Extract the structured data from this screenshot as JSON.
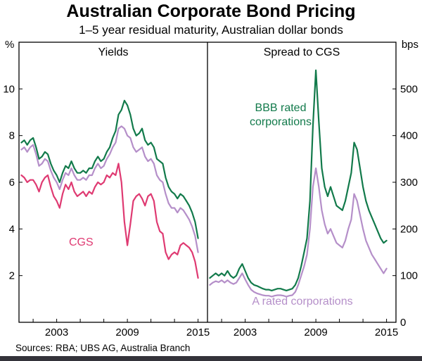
{
  "chart_data": {
    "type": "line",
    "title": "Australian Corporate Bond Pricing",
    "subtitle": "1–5 year residual maturity, Australian dollar bonds",
    "x_start": 2000.0,
    "x_step": 0.25,
    "xlim": [
      1999.8,
      2015.8
    ],
    "xticks_minor": [
      2001,
      2003,
      2005,
      2007,
      2009,
      2011,
      2013,
      2015
    ],
    "xtick_labels": [
      2003,
      2009,
      2015
    ],
    "grid": false,
    "legend_position": "inline-annotations",
    "panels": [
      {
        "title": "Yields",
        "unit": "%",
        "ylim": [
          0,
          12
        ],
        "yticks": [
          2,
          4,
          6,
          8,
          10
        ],
        "series": [
          {
            "id": "bbb-yield",
            "name": "BBB rated corporations",
            "color": "#127a4b",
            "values": [
              7.7,
              7.8,
              7.6,
              7.8,
              7.9,
              7.5,
              7.0,
              7.1,
              7.3,
              7.2,
              6.8,
              6.5,
              6.3,
              6.0,
              6.4,
              6.7,
              6.6,
              6.9,
              6.6,
              6.4,
              6.4,
              6.5,
              6.4,
              6.6,
              6.6,
              6.9,
              7.1,
              6.9,
              7.0,
              7.3,
              7.5,
              7.9,
              8.2,
              8.9,
              9.1,
              9.5,
              9.3,
              8.9,
              8.3,
              8.0,
              8.1,
              8.3,
              7.8,
              7.6,
              7.7,
              7.5,
              7.0,
              6.9,
              6.8,
              6.2,
              5.8,
              5.6,
              5.5,
              5.3,
              5.5,
              5.4,
              5.2,
              5.0,
              4.7,
              4.3,
              3.6
            ]
          },
          {
            "id": "a-yield",
            "name": "A rated corporations",
            "color": "#b58fc9",
            "values": [
              7.4,
              7.5,
              7.3,
              7.5,
              7.6,
              7.2,
              6.7,
              6.8,
              7.0,
              6.9,
              6.5,
              6.2,
              6.0,
              5.7,
              6.1,
              6.4,
              6.3,
              6.6,
              6.3,
              6.1,
              6.1,
              6.2,
              6.1,
              6.3,
              6.3,
              6.6,
              6.8,
              6.6,
              6.7,
              7.0,
              7.2,
              7.5,
              7.7,
              8.3,
              8.4,
              8.3,
              8.0,
              7.9,
              7.5,
              7.3,
              7.4,
              7.5,
              7.1,
              6.9,
              7.0,
              6.8,
              6.3,
              6.1,
              6.0,
              5.5,
              5.1,
              4.9,
              4.9,
              4.7,
              4.9,
              4.8,
              4.6,
              4.4,
              4.1,
              3.7,
              3.0
            ]
          },
          {
            "id": "cgs-yield",
            "name": "CGS",
            "color": "#df3a72",
            "values": [
              6.3,
              6.2,
              6.0,
              6.1,
              6.1,
              5.9,
              5.6,
              6.0,
              6.2,
              6.3,
              5.8,
              5.4,
              5.2,
              4.9,
              5.5,
              5.9,
              5.7,
              6.0,
              5.6,
              5.4,
              5.5,
              5.6,
              5.4,
              5.6,
              5.5,
              5.8,
              6.0,
              5.9,
              6.0,
              6.3,
              6.2,
              6.4,
              6.3,
              6.8,
              6.0,
              4.3,
              3.3,
              4.2,
              5.2,
              5.4,
              5.5,
              5.3,
              5.0,
              5.4,
              5.5,
              5.2,
              4.3,
              3.9,
              3.8,
              3.0,
              2.7,
              2.9,
              3.0,
              2.9,
              3.3,
              3.4,
              3.3,
              3.2,
              3.0,
              2.6,
              1.9
            ]
          }
        ]
      },
      {
        "title": "Spread to CGS",
        "unit": "bps",
        "ylim": [
          0,
          600
        ],
        "yticks": [
          0,
          100,
          200,
          300,
          400,
          500
        ],
        "series": [
          {
            "id": "bbb-spread",
            "name": "BBB rated corporations",
            "color": "#127a4b",
            "values": [
              95,
              100,
              105,
              100,
              105,
              100,
              110,
              100,
              95,
              100,
              115,
              125,
              110,
              95,
              85,
              80,
              78,
              75,
              72,
              70,
              70,
              68,
              70,
              72,
              72,
              70,
              68,
              70,
              72,
              80,
              95,
              120,
              150,
              180,
              260,
              420,
              540,
              430,
              330,
              290,
              270,
              290,
              270,
              250,
              245,
              240,
              260,
              290,
              320,
              385,
              370,
              330,
              290,
              260,
              240,
              225,
              210,
              195,
              180,
              170,
              175
            ]
          },
          {
            "id": "a-spread",
            "name": "A rated corporations",
            "color": "#b58fc9",
            "values": [
              80,
              85,
              88,
              86,
              90,
              85,
              90,
              85,
              82,
              85,
              95,
              105,
              92,
              80,
              70,
              65,
              62,
              60,
              58,
              57,
              57,
              55,
              57,
              58,
              58,
              57,
              55,
              57,
              58,
              65,
              80,
              100,
              120,
              145,
              200,
              290,
              330,
              290,
              240,
              210,
              190,
              200,
              185,
              170,
              165,
              160,
              175,
              200,
              220,
              275,
              260,
              230,
              200,
              175,
              160,
              145,
              135,
              125,
              115,
              105,
              115
            ]
          }
        ]
      }
    ],
    "annotations": {
      "bbb_label": "BBB rated corporations",
      "cgs_label": "CGS",
      "a_label": "A rated corporations"
    }
  },
  "footer": {
    "source_note": "Sources:  RBA; UBS AG, Australia Branch"
  }
}
